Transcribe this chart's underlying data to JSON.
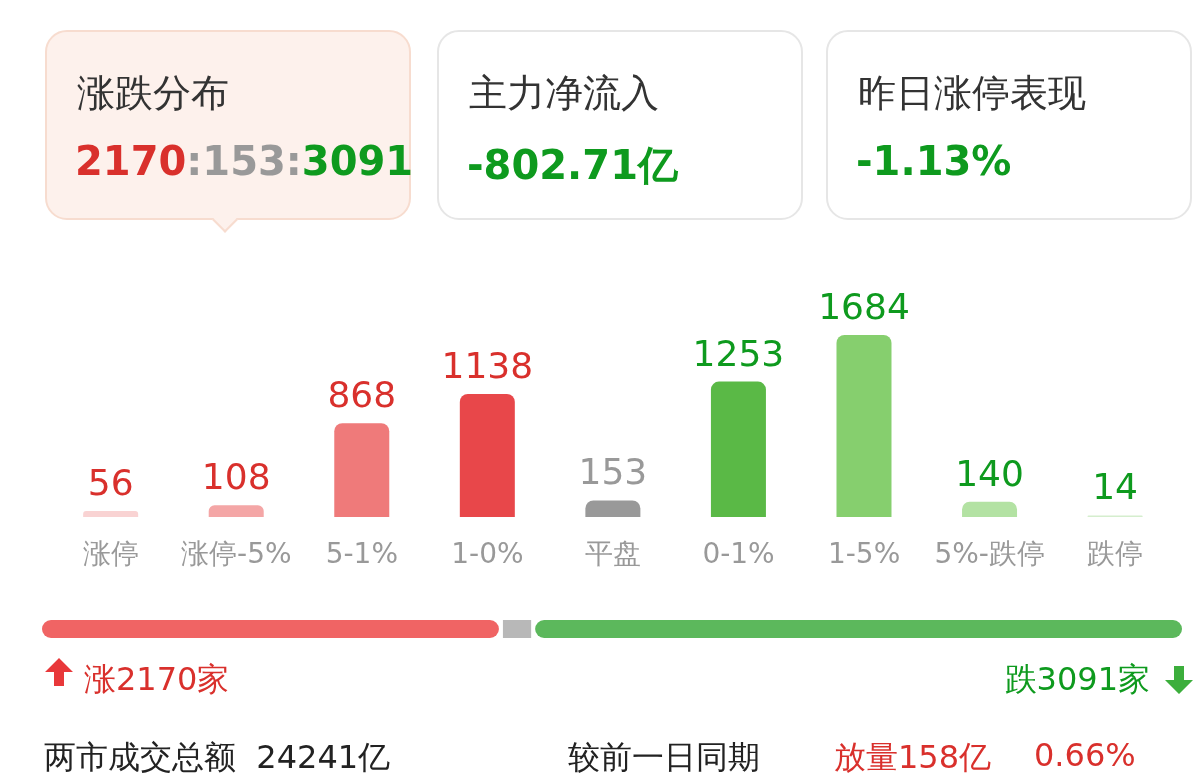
{
  "chart_data": [
    {
      "type": "other",
      "annotations": [
        "涨跌分布",
        "2170:153:3091",
        "主力净流入",
        "-802.71亿",
        "昨日涨停表现",
        "-1.13%"
      ]
    },
    {
      "type": "bar",
      "categories": [
        "涨停",
        "涨停-5%",
        "5-1%",
        "1-0%",
        "平盘",
        "0-1%",
        "1-5%",
        "5%-跌停",
        "跌停"
      ],
      "values": [
        56,
        108,
        868,
        1138,
        153,
        1253,
        1684,
        140,
        14
      ],
      "colors": [
        "#f9d3d3",
        "#f4a6a6",
        "#ef7a7a",
        "#e8474a",
        "#999999",
        "#5ab946",
        "#86cf6e",
        "#b3e2a3",
        "#d5eece"
      ],
      "data_labels": true
    },
    {
      "type": "other",
      "annotations": [
        "涨2170家",
        "跌3091家",
        "两市成交总额  24241亿",
        "较前一日同期",
        "放量158亿",
        "0.66%"
      ]
    }
  ]
}
